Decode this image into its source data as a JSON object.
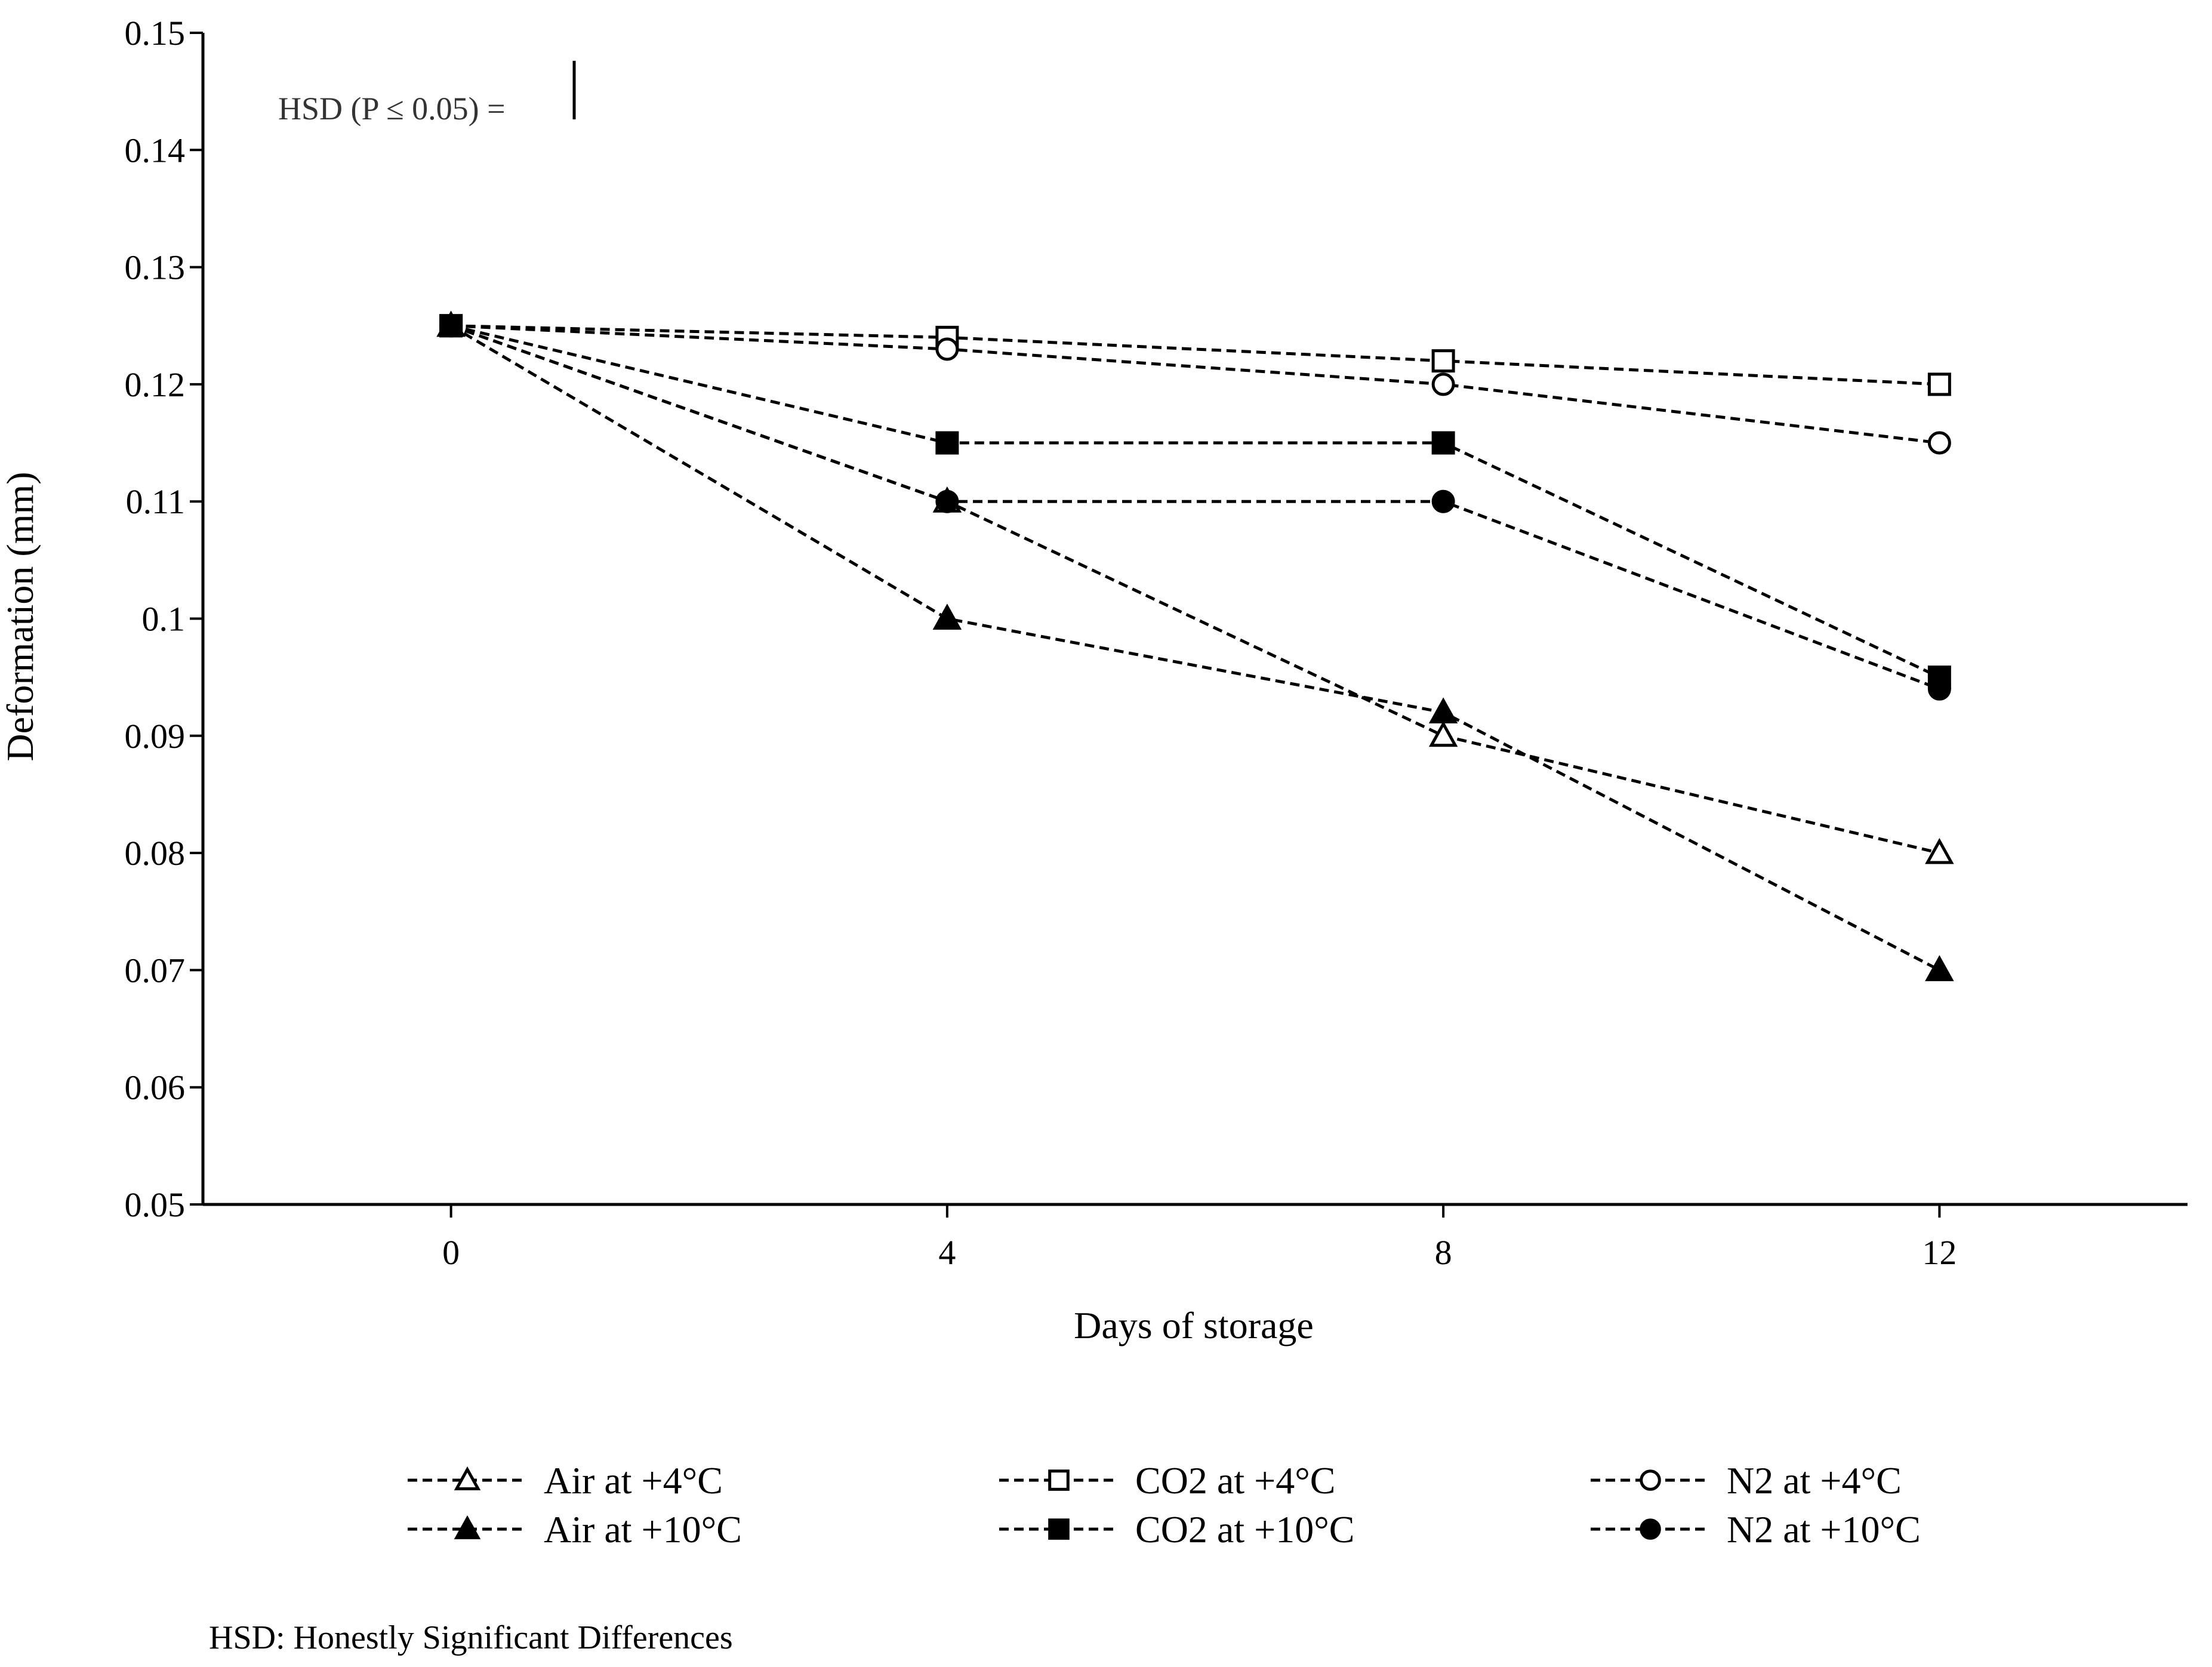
{
  "chart_data": {
    "type": "line",
    "title": "",
    "xlabel": "Days of storage",
    "ylabel": "Deformation (mm)",
    "x": [
      0,
      4,
      8,
      12
    ],
    "x_ticks": [
      "0",
      "4",
      "8",
      "12"
    ],
    "xlim": [
      -2,
      14
    ],
    "ylim": [
      0.05,
      0.15
    ],
    "y_ticks": [
      "0.05",
      "0.06",
      "0.07",
      "0.08",
      "0.09",
      "0.1",
      "0.11",
      "0.12",
      "0.13",
      "0.14",
      "0.15"
    ],
    "grid": false,
    "legend_position": "bottom",
    "series": [
      {
        "name": "Air at +4°C",
        "marker": "triangle-open",
        "values": [
          0.125,
          0.11,
          0.09,
          0.08
        ]
      },
      {
        "name": "Air at +10°C",
        "marker": "triangle-filled",
        "values": [
          0.125,
          0.1,
          0.092,
          0.07
        ]
      },
      {
        "name": "CO2 at +4°C",
        "marker": "square-open",
        "values": [
          0.125,
          0.124,
          0.122,
          0.12
        ]
      },
      {
        "name": "CO2 at +10°C",
        "marker": "square-filled",
        "values": [
          0.125,
          0.115,
          0.115,
          0.095
        ]
      },
      {
        "name": "N2 at +4°C",
        "marker": "circle-open",
        "values": [
          0.125,
          0.123,
          0.12,
          0.115
        ]
      },
      {
        "name": "N2 at +10°C",
        "marker": "circle-filled",
        "values": [
          0.125,
          0.11,
          0.11,
          0.094
        ]
      }
    ],
    "annotations": {
      "hsd": "HSD (P ≤ 0.05) =",
      "hsd_value": 0.005,
      "footnote": "HSD: Honestly Significant Differences"
    }
  },
  "colors": {
    "line": "#000000",
    "background": "#ffffff"
  }
}
